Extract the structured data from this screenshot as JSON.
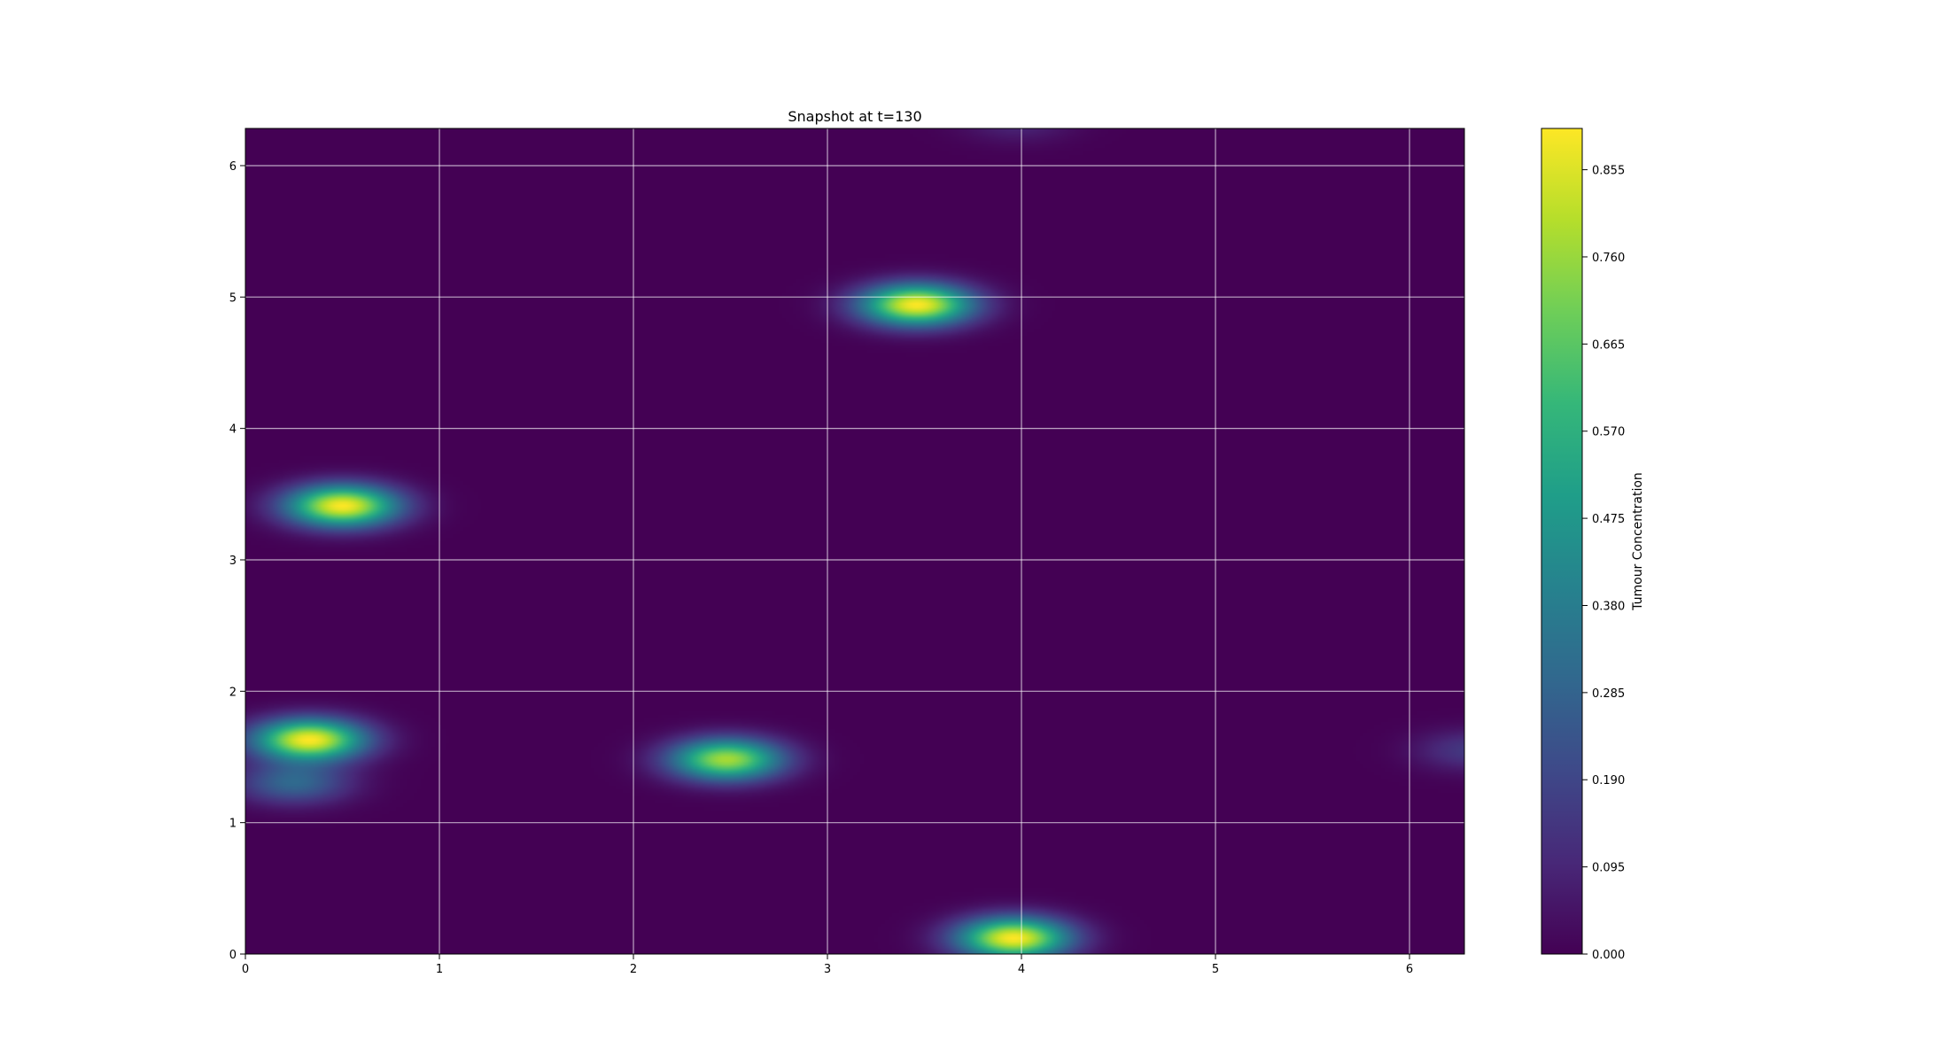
{
  "chart_data": {
    "type": "heatmap",
    "title": "Snapshot at t=130",
    "xlabel": "",
    "ylabel": "",
    "xlim": [
      0,
      6.283
    ],
    "ylim": [
      0,
      6.283
    ],
    "grid": true,
    "x_ticks": [
      0,
      1,
      2,
      3,
      4,
      5,
      6
    ],
    "y_ticks": [
      0,
      1,
      2,
      3,
      4,
      5,
      6
    ],
    "colormap": "viridis",
    "colorbar": {
      "label": "Tumour Concentration",
      "range": [
        0,
        0.9
      ],
      "ticks": [
        "0.000",
        "0.095",
        "0.190",
        "0.285",
        "0.380",
        "0.475",
        "0.570",
        "0.665",
        "0.760",
        "0.855"
      ]
    },
    "blobs": [
      {
        "x": 0.33,
        "y": 1.63,
        "peak": 0.9
      },
      {
        "x": 0.25,
        "y": 1.3,
        "peak": 0.3
      },
      {
        "x": 0.5,
        "y": 3.41,
        "peak": 0.9
      },
      {
        "x": 2.48,
        "y": 1.48,
        "peak": 0.78
      },
      {
        "x": 3.46,
        "y": 4.94,
        "peak": 0.9
      },
      {
        "x": 3.96,
        "y": 0.12,
        "peak": 0.9
      },
      {
        "x": 6.32,
        "y": 1.55,
        "peak": 0.15
      },
      {
        "x": 3.98,
        "y": 6.34,
        "peak": 0.1
      }
    ]
  }
}
